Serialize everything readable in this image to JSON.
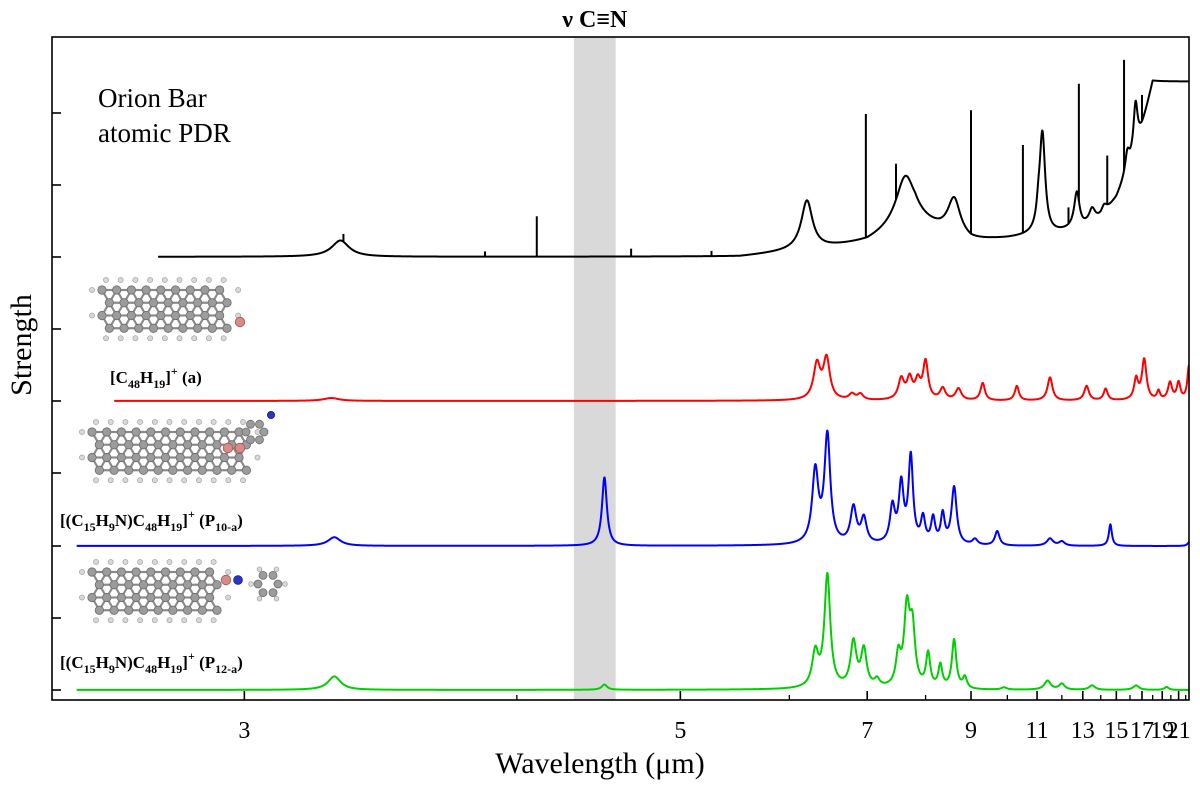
{
  "chart_data": {
    "type": "line",
    "xlabel": "Wavelength (μm)",
    "ylabel": "Strength",
    "x_scale": "reciprocal",
    "xlim": [
      2.55,
      22.5
    ],
    "x_ticks": [
      3,
      5,
      7,
      9,
      11,
      13,
      15,
      17,
      19,
      21
    ],
    "grid": false,
    "highlight_band": {
      "label": "ν C≡N",
      "x_range": [
        4.3,
        4.55
      ],
      "color": "#d9d9d9"
    },
    "panels": [
      {
        "id": "orion",
        "label_lines": [
          "Orion Bar",
          "atomic PDR"
        ],
        "color": "#000000",
        "baseline": 0.0,
        "lines": [
          {
            "x": 4.1,
            "h": 0.62
          },
          {
            "x": 3.3,
            "h": 0.12
          },
          {
            "x": 3.85,
            "h": 0.08
          },
          {
            "x": 4.65,
            "h": 0.12
          },
          {
            "x": 5.25,
            "h": 0.08
          },
          {
            "x": 6.98,
            "h": 1.9
          },
          {
            "x": 7.46,
            "h": 0.55
          },
          {
            "x": 9.0,
            "h": 1.9
          },
          {
            "x": 10.5,
            "h": 1.35
          },
          {
            "x": 12.8,
            "h": 1.8
          },
          {
            "x": 14.4,
            "h": 0.75
          },
          {
            "x": 15.55,
            "h": 1.7
          },
          {
            "x": 12.3,
            "h": 0.25
          },
          {
            "x": 17.0,
            "h": 0.4
          }
        ]
      },
      {
        "id": "a",
        "label": "[C48H19]+ (a)",
        "color": "#ff0000"
      },
      {
        "id": "p10",
        "label": "[(C15H9N)C48H19]+ (P10-a)",
        "color": "#0000ff"
      },
      {
        "id": "p12",
        "label": "[(C15H9N)C48H19]+ (P12-a)",
        "color": "#00d000"
      }
    ],
    "series": [
      {
        "id": "orion",
        "name": "Orion Bar atomic PDR",
        "peaks": [
          {
            "x": 3.29,
            "h": 0.25,
            "w": 0.035
          },
          {
            "x": 6.2,
            "h": 0.75,
            "w": 0.08
          },
          {
            "x": 7.62,
            "h": 0.75,
            "w": 0.2
          },
          {
            "x": 8.6,
            "h": 0.55,
            "w": 0.17
          },
          {
            "x": 11.2,
            "h": 1.55,
            "w": 0.13
          },
          {
            "x": 11.05,
            "h": 0.2,
            "w": 0.08
          },
          {
            "x": 12.7,
            "h": 0.55,
            "w": 0.16
          },
          {
            "x": 13.5,
            "h": 0.2,
            "w": 0.2
          },
          {
            "x": 14.2,
            "h": 0.12,
            "w": 0.2
          },
          {
            "x": 16.45,
            "h": 0.7,
            "w": 0.2
          },
          {
            "x": 15.8,
            "h": 0.3,
            "w": 0.2
          }
        ],
        "continuum": [
          {
            "x": 5.5,
            "y": 0.0
          },
          {
            "x": 7.0,
            "y": 0.22
          },
          {
            "x": 7.8,
            "y": 0.55
          },
          {
            "x": 8.3,
            "y": 0.4
          },
          {
            "x": 9.0,
            "y": 0.25
          },
          {
            "x": 10.0,
            "y": 0.28
          },
          {
            "x": 11.5,
            "y": 0.35
          },
          {
            "x": 13.0,
            "y": 0.45
          },
          {
            "x": 14.0,
            "y": 0.6
          },
          {
            "x": 15.0,
            "y": 0.9
          },
          {
            "x": 16.0,
            "y": 1.4
          },
          {
            "x": 17.0,
            "y": 2.0
          },
          {
            "x": 18.0,
            "y": 2.7
          }
        ]
      },
      {
        "id": "a",
        "name": "[C48H19]+ (a)",
        "peaks": [
          {
            "x": 3.26,
            "h": 0.05,
            "w": 0.03
          },
          {
            "x": 6.32,
            "h": 0.6,
            "w": 0.05
          },
          {
            "x": 6.44,
            "h": 0.7,
            "w": 0.05
          },
          {
            "x": 6.78,
            "h": 0.1,
            "w": 0.05
          },
          {
            "x": 6.9,
            "h": 0.1,
            "w": 0.05
          },
          {
            "x": 7.55,
            "h": 0.35,
            "w": 0.06
          },
          {
            "x": 7.7,
            "h": 0.35,
            "w": 0.06
          },
          {
            "x": 7.85,
            "h": 0.3,
            "w": 0.06
          },
          {
            "x": 8.0,
            "h": 0.65,
            "w": 0.06
          },
          {
            "x": 8.35,
            "h": 0.2,
            "w": 0.07
          },
          {
            "x": 8.7,
            "h": 0.2,
            "w": 0.08
          },
          {
            "x": 9.3,
            "h": 0.3,
            "w": 0.07
          },
          {
            "x": 10.3,
            "h": 0.25,
            "w": 0.08
          },
          {
            "x": 11.5,
            "h": 0.4,
            "w": 0.12
          },
          {
            "x": 13.2,
            "h": 0.25,
            "w": 0.15
          },
          {
            "x": 14.3,
            "h": 0.2,
            "w": 0.15
          },
          {
            "x": 16.5,
            "h": 0.35,
            "w": 0.2
          },
          {
            "x": 17.2,
            "h": 0.7,
            "w": 0.25
          },
          {
            "x": 18.6,
            "h": 0.15,
            "w": 0.2
          },
          {
            "x": 19.9,
            "h": 0.3,
            "w": 0.3
          },
          {
            "x": 21.0,
            "h": 0.3,
            "w": 0.3
          },
          {
            "x": 22.5,
            "h": 0.6,
            "w": 0.3
          }
        ]
      },
      {
        "id": "p10",
        "name": "[(C15H9N)C48H19]+ (P10-a)",
        "peaks": [
          {
            "x": 3.27,
            "h": 0.12,
            "w": 0.025
          },
          {
            "x": 4.48,
            "h": 0.95,
            "w": 0.018
          },
          {
            "x": 6.3,
            "h": 1.0,
            "w": 0.045
          },
          {
            "x": 6.45,
            "h": 1.5,
            "w": 0.045
          },
          {
            "x": 6.8,
            "h": 0.5,
            "w": 0.05
          },
          {
            "x": 6.95,
            "h": 0.35,
            "w": 0.05
          },
          {
            "x": 7.4,
            "h": 0.5,
            "w": 0.05
          },
          {
            "x": 7.55,
            "h": 0.8,
            "w": 0.05
          },
          {
            "x": 7.72,
            "h": 1.2,
            "w": 0.05
          },
          {
            "x": 7.95,
            "h": 0.35,
            "w": 0.05
          },
          {
            "x": 8.15,
            "h": 0.35,
            "w": 0.05
          },
          {
            "x": 8.35,
            "h": 0.4,
            "w": 0.05
          },
          {
            "x": 8.6,
            "h": 0.8,
            "w": 0.07
          },
          {
            "x": 9.1,
            "h": 0.08,
            "w": 0.08
          },
          {
            "x": 9.7,
            "h": 0.2,
            "w": 0.08
          },
          {
            "x": 11.5,
            "h": 0.1,
            "w": 0.15
          },
          {
            "x": 12.0,
            "h": 0.06,
            "w": 0.15
          },
          {
            "x": 14.6,
            "h": 0.3,
            "w": 0.12
          },
          {
            "x": 22.5,
            "h": 0.05,
            "w": 0.3
          }
        ]
      },
      {
        "id": "p12",
        "name": "[(C15H9N)C48H19]+ (P12-a)",
        "peaks": [
          {
            "x": 3.27,
            "h": 0.18,
            "w": 0.025
          },
          {
            "x": 4.48,
            "h": 0.07,
            "w": 0.02
          },
          {
            "x": 6.3,
            "h": 0.45,
            "w": 0.045
          },
          {
            "x": 6.45,
            "h": 1.5,
            "w": 0.045
          },
          {
            "x": 6.8,
            "h": 0.6,
            "w": 0.05
          },
          {
            "x": 6.95,
            "h": 0.5,
            "w": 0.05
          },
          {
            "x": 7.15,
            "h": 0.1,
            "w": 0.05
          },
          {
            "x": 7.5,
            "h": 0.4,
            "w": 0.05
          },
          {
            "x": 7.65,
            "h": 1.0,
            "w": 0.06
          },
          {
            "x": 7.75,
            "h": 0.75,
            "w": 0.06
          },
          {
            "x": 8.05,
            "h": 0.45,
            "w": 0.05
          },
          {
            "x": 8.3,
            "h": 0.3,
            "w": 0.05
          },
          {
            "x": 8.6,
            "h": 0.65,
            "w": 0.06
          },
          {
            "x": 8.85,
            "h": 0.15,
            "w": 0.06
          },
          {
            "x": 9.9,
            "h": 0.03,
            "w": 0.1
          },
          {
            "x": 11.4,
            "h": 0.12,
            "w": 0.15
          },
          {
            "x": 12.0,
            "h": 0.08,
            "w": 0.15
          },
          {
            "x": 13.5,
            "h": 0.06,
            "w": 0.2
          },
          {
            "x": 16.5,
            "h": 0.06,
            "w": 0.3
          },
          {
            "x": 19.5,
            "h": 0.04,
            "w": 0.3
          }
        ]
      }
    ]
  }
}
